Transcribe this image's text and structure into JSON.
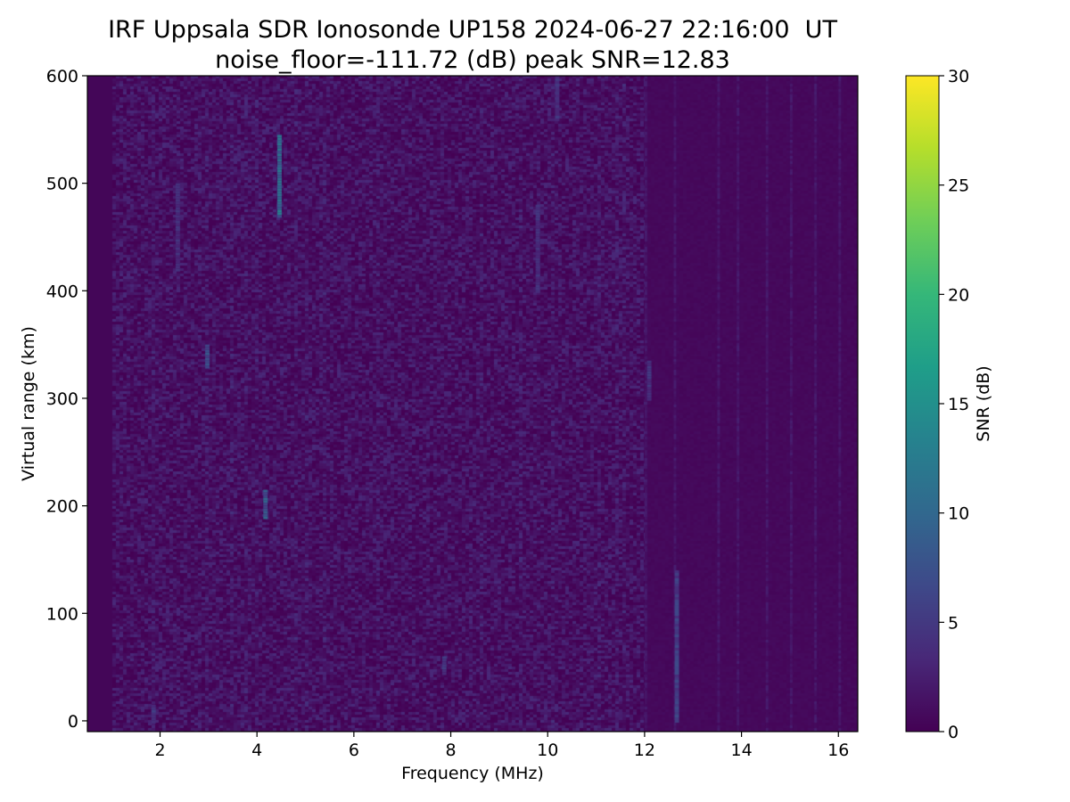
{
  "chart_data": {
    "type": "heatmap",
    "title": "IRF Uppsala SDR Ionosonde UP158 2024-06-27 22:16:00  UT",
    "subtitle": "noise_floor=-111.72 (dB) peak SNR=12.83",
    "xlabel": "Frequency (MHz)",
    "ylabel": "Virtual range (km)",
    "xlim": [
      0.5,
      16.4
    ],
    "ylim": [
      -10,
      600
    ],
    "xticks": [
      2,
      4,
      6,
      8,
      10,
      12,
      14,
      16
    ],
    "yticks": [
      0,
      100,
      200,
      300,
      400,
      500,
      600
    ],
    "colorbar": {
      "label": "SNR (dB)",
      "range": [
        0,
        30
      ],
      "ticks": [
        0,
        5,
        10,
        15,
        20,
        25,
        30
      ],
      "colormap": [
        "#440154",
        "#482878",
        "#3e4989",
        "#31688e",
        "#26828e",
        "#1f9e89",
        "#35b779",
        "#6ece58",
        "#b5de2b",
        "#fde725"
      ]
    },
    "background_snr": 0.4,
    "noise_snr_range": [
      0,
      3.5
    ],
    "noise_frequency_range": [
      1.0,
      12.0
    ],
    "quiet_frequency_range": [
      12.0,
      16.4
    ],
    "quiet_stripes_mhz": [
      12.0,
      12.6,
      13.5,
      13.9,
      14.5,
      15.0,
      15.5,
      16.0
    ],
    "features": [
      {
        "f": 4.42,
        "r0": 470,
        "r1": 545,
        "snr": 12.83
      },
      {
        "f": 4.13,
        "r0": 190,
        "r1": 215,
        "snr": 11.0
      },
      {
        "f": 2.93,
        "r0": 330,
        "r1": 350,
        "snr": 8.5
      },
      {
        "f": 12.62,
        "r0": 0,
        "r1": 140,
        "snr": 7.0
      },
      {
        "f": 1.82,
        "r0": 0,
        "r1": 15,
        "snr": 6.0
      },
      {
        "f": 7.82,
        "r0": 45,
        "r1": 60,
        "snr": 6.0
      },
      {
        "f": 10.15,
        "r0": 560,
        "r1": 600,
        "snr": 5.5
      },
      {
        "f": 12.05,
        "r0": 300,
        "r1": 335,
        "snr": 5.5
      },
      {
        "f": 2.32,
        "r0": 420,
        "r1": 500,
        "snr": 5.0
      },
      {
        "f": 9.75,
        "r0": 400,
        "r1": 480,
        "snr": 5.0
      }
    ]
  }
}
